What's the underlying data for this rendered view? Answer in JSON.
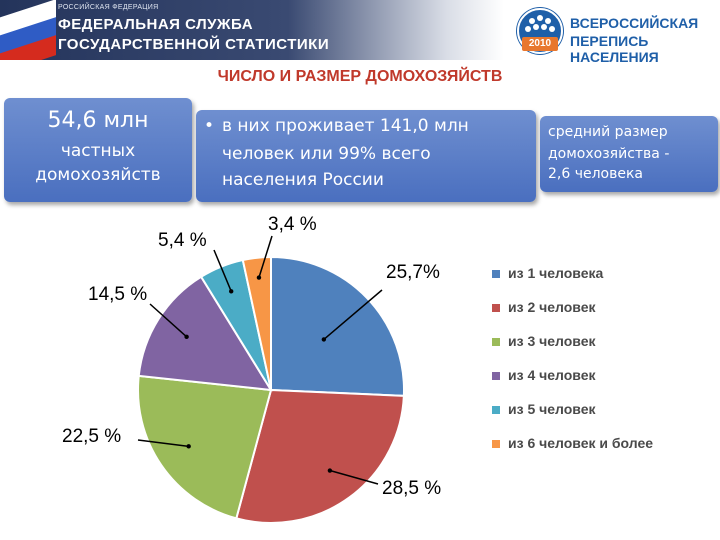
{
  "header": {
    "small_text": "РОССИЙСКАЯ ФЕДЕРАЦИЯ",
    "org_line1": "ФЕДЕРАЛЬНАЯ СЛУЖБА",
    "org_line2": "ГОСУДАРСТВЕННОЙ СТАТИСТИКИ",
    "logo_year": "2010",
    "logo_line1": "ВСЕРОССИЙСКАЯ",
    "logo_line2": "ПЕРЕПИСЬ НАСЕЛЕНИЯ"
  },
  "title": "ЧИСЛО И РАЗМЕР ДОМОХОЗЯЙСТВ",
  "boxes": {
    "households": {
      "big": "54,6 млн",
      "line1": "частных",
      "line2": "домохозяйств"
    },
    "population": {
      "bullet": "•",
      "line1": "в них проживает 141,0 млн",
      "line2": "человек или 99% всего",
      "line3": "населения России"
    },
    "avg_size": {
      "line1": "средний размер",
      "line2": "домохозяйства -",
      "line3": "2,6 человека"
    }
  },
  "chart_data": {
    "type": "pie",
    "title": "ЧИСЛО И РАЗМЕР ДОМОХОЗЯЙСТВ",
    "unit": "%",
    "categories": [
      "из 1 человека",
      "из 2 человек",
      "из 3 человек",
      "из 4 человек",
      "из 5 человек",
      "из 6 человек и более"
    ],
    "values": [
      25.7,
      28.5,
      22.5,
      14.5,
      5.4,
      3.4
    ],
    "data_labels": [
      "25,7%",
      "28,5 %",
      "22,5 %",
      "14,5 %",
      "5,4 %",
      "3,4 %"
    ],
    "colors": [
      "#4f81bd",
      "#c0504d",
      "#9bbb59",
      "#8064a2",
      "#4bacc6",
      "#f79646"
    ],
    "legend_position": "right"
  }
}
